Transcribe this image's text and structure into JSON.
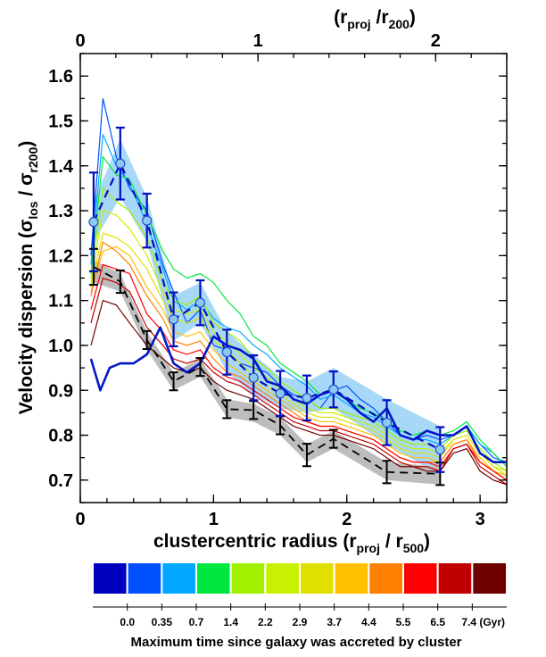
{
  "chart_data": {
    "type": "line",
    "xlabel": {
      "main": "clustercentric radius (r",
      "sub": "proj",
      "mid": " / r",
      "sub2": "500",
      "end": ")"
    },
    "ylabel": {
      "main": "Velocity dispersion (σ",
      "sub": "los",
      "mid": " / σ",
      "sub2": "r200",
      "end": ")"
    },
    "top_label": {
      "open": "(r",
      "sub": "proj",
      "mid": " /r",
      "sub2": "200",
      "end": ")"
    },
    "xlim": [
      0,
      3.2
    ],
    "ylim": [
      0.65,
      1.65
    ],
    "top_axis_scale": 0.75,
    "x_ticks": [
      "0",
      "1",
      "2",
      "3"
    ],
    "y_ticks": [
      "0.7",
      "0.8",
      "0.9",
      "1.0",
      "1.1",
      "1.2",
      "1.3",
      "1.4",
      "1.5",
      "1.6"
    ],
    "top_ticks": [
      "0",
      "1",
      "2"
    ],
    "x_minor_step": 0.2,
    "y_minor_step": 0.05,
    "colorbar": {
      "colors": [
        "#0000c0",
        "#0050ff",
        "#00a8ff",
        "#00e840",
        "#a0f000",
        "#c8f000",
        "#e0e000",
        "#ffc000",
        "#ff8000",
        "#ff0000",
        "#c00000",
        "#700000"
      ],
      "labels": [
        "0.0",
        "0.35",
        "0.7",
        "1.4",
        "2.2",
        "2.9",
        "3.7",
        "4.4",
        "5.5",
        "6.5",
        "7.4 (Gyr)"
      ],
      "title": "Maximum time since galaxy was accreted by cluster"
    },
    "shaded_bands": [
      {
        "name": "blue-band",
        "color": "#a8d8f8",
        "x": [
          0.1,
          0.3,
          0.5,
          0.7,
          0.9,
          1.1,
          1.3,
          1.5,
          1.7,
          1.9,
          2.3,
          2.7
        ],
        "lower": [
          1.23,
          1.33,
          1.23,
          1.01,
          1.05,
          0.94,
          0.89,
          0.86,
          0.85,
          0.86,
          0.78,
          0.71
        ],
        "upper": [
          1.32,
          1.46,
          1.33,
          1.11,
          1.14,
          1.03,
          0.98,
          0.93,
          0.92,
          0.95,
          0.88,
          0.82
        ]
      },
      {
        "name": "gray-band",
        "color": "#bdbdbd",
        "x": [
          0.1,
          0.3,
          0.5,
          0.7,
          0.9,
          1.1,
          1.3,
          1.5,
          1.7,
          1.9,
          2.3,
          2.7
        ],
        "lower": [
          1.14,
          1.12,
          0.99,
          0.9,
          0.93,
          0.84,
          0.83,
          0.8,
          0.74,
          0.77,
          0.7,
          0.69
        ],
        "upper": [
          1.19,
          1.16,
          1.03,
          0.94,
          0.97,
          0.88,
          0.87,
          0.84,
          0.78,
          0.81,
          0.74,
          0.73
        ]
      }
    ],
    "thin_lines": {
      "x": [
        0.08,
        0.17,
        0.27,
        0.37,
        0.5,
        0.62,
        0.7,
        0.8,
        0.9,
        1.0,
        1.1,
        1.2,
        1.3,
        1.4,
        1.5,
        1.6,
        1.7,
        1.8,
        1.9,
        2.0,
        2.1,
        2.2,
        2.3,
        2.4,
        2.5,
        2.6,
        2.7,
        2.8,
        2.9,
        3.0,
        3.1,
        3.2
      ],
      "series": [
        {
          "name": "0.35",
          "values": [
            1.2,
            1.55,
            1.42,
            1.35,
            1.3,
            1.18,
            1.12,
            1.05,
            1.08,
            1.0,
            0.99,
            0.96,
            0.95,
            0.94,
            0.91,
            0.89,
            0.88,
            0.86,
            0.9,
            0.91,
            0.88,
            0.86,
            0.83,
            0.8,
            0.79,
            0.8,
            0.79,
            0.8,
            0.82,
            0.78,
            0.75,
            0.74
          ]
        },
        {
          "name": "0.7",
          "values": [
            1.18,
            1.47,
            1.4,
            1.36,
            1.27,
            1.17,
            1.1,
            1.08,
            1.1,
            1.06,
            1.04,
            1.03,
            1.0,
            0.98,
            0.95,
            0.93,
            0.91,
            0.88,
            0.89,
            0.87,
            0.85,
            0.84,
            0.82,
            0.8,
            0.79,
            0.79,
            0.78,
            0.8,
            0.82,
            0.78,
            0.76,
            0.73
          ]
        },
        {
          "name": "1.4",
          "values": [
            1.16,
            1.42,
            1.38,
            1.37,
            1.29,
            1.21,
            1.17,
            1.15,
            1.16,
            1.14,
            1.1,
            1.07,
            1.02,
            1.0,
            0.96,
            0.94,
            0.92,
            0.89,
            0.9,
            0.88,
            0.86,
            0.85,
            0.83,
            0.81,
            0.8,
            0.81,
            0.8,
            0.81,
            0.83,
            0.79,
            0.76,
            0.73
          ]
        },
        {
          "name": "2.2",
          "values": [
            1.15,
            1.35,
            1.32,
            1.3,
            1.24,
            1.14,
            1.1,
            1.09,
            1.11,
            1.05,
            1.03,
            1.01,
            0.97,
            0.95,
            0.92,
            0.9,
            0.88,
            0.86,
            0.86,
            0.85,
            0.84,
            0.83,
            0.81,
            0.79,
            0.78,
            0.78,
            0.77,
            0.8,
            0.81,
            0.77,
            0.74,
            0.72
          ]
        },
        {
          "name": "2.9",
          "values": [
            1.14,
            1.3,
            1.29,
            1.26,
            1.2,
            1.12,
            1.08,
            1.07,
            1.08,
            1.03,
            1.01,
            0.98,
            0.95,
            0.93,
            0.9,
            0.88,
            0.86,
            0.85,
            0.85,
            0.84,
            0.83,
            0.82,
            0.8,
            0.78,
            0.77,
            0.77,
            0.76,
            0.79,
            0.8,
            0.76,
            0.73,
            0.72
          ]
        },
        {
          "name": "3.7",
          "values": [
            1.13,
            1.25,
            1.24,
            1.22,
            1.17,
            1.1,
            1.06,
            1.05,
            1.06,
            1.01,
            0.99,
            0.96,
            0.93,
            0.91,
            0.89,
            0.87,
            0.85,
            0.84,
            0.84,
            0.83,
            0.82,
            0.81,
            0.79,
            0.77,
            0.76,
            0.76,
            0.75,
            0.79,
            0.8,
            0.76,
            0.73,
            0.71
          ]
        },
        {
          "name": "4.4",
          "values": [
            1.12,
            1.21,
            1.22,
            1.2,
            1.13,
            1.08,
            1.03,
            1.02,
            1.03,
            0.99,
            0.96,
            0.94,
            0.92,
            0.9,
            0.88,
            0.86,
            0.84,
            0.83,
            0.83,
            0.82,
            0.81,
            0.8,
            0.78,
            0.76,
            0.75,
            0.75,
            0.74,
            0.78,
            0.79,
            0.75,
            0.72,
            0.71
          ]
        },
        {
          "name": "5.5",
          "values": [
            1.11,
            1.23,
            1.21,
            1.18,
            1.11,
            1.06,
            1.01,
            1.0,
            1.01,
            0.97,
            0.94,
            0.93,
            0.91,
            0.89,
            0.87,
            0.85,
            0.83,
            0.82,
            0.82,
            0.81,
            0.8,
            0.79,
            0.77,
            0.75,
            0.74,
            0.74,
            0.74,
            0.78,
            0.79,
            0.74,
            0.72,
            0.7
          ]
        },
        {
          "name": "6.5",
          "values": [
            1.08,
            1.18,
            1.17,
            1.16,
            1.07,
            1.03,
            0.99,
            0.98,
            0.99,
            0.95,
            0.93,
            0.92,
            0.9,
            0.88,
            0.86,
            0.84,
            0.83,
            0.82,
            0.82,
            0.81,
            0.8,
            0.79,
            0.77,
            0.75,
            0.74,
            0.74,
            0.73,
            0.77,
            0.78,
            0.74,
            0.72,
            0.7
          ]
        },
        {
          "name": "7.4",
          "values": [
            1.05,
            1.15,
            1.14,
            1.12,
            1.04,
            1.0,
            0.97,
            0.96,
            0.97,
            0.94,
            0.92,
            0.91,
            0.89,
            0.87,
            0.85,
            0.83,
            0.82,
            0.81,
            0.81,
            0.8,
            0.79,
            0.78,
            0.76,
            0.74,
            0.73,
            0.73,
            0.72,
            0.77,
            0.78,
            0.73,
            0.71,
            0.69
          ]
        },
        {
          "name": "> 7.4",
          "values": [
            1.0,
            1.1,
            1.09,
            1.05,
            1.0,
            0.97,
            0.95,
            0.94,
            0.95,
            0.92,
            0.9,
            0.89,
            0.88,
            0.86,
            0.84,
            0.82,
            0.81,
            0.8,
            0.8,
            0.79,
            0.78,
            0.77,
            0.75,
            0.73,
            0.73,
            0.72,
            0.72,
            0.76,
            0.77,
            0.72,
            0.7,
            0.69
          ]
        }
      ]
    },
    "bold_blue_line": {
      "x": [
        0.08,
        0.15,
        0.22,
        0.3,
        0.4,
        0.5,
        0.6,
        0.7,
        0.8,
        0.9,
        1.0,
        1.1,
        1.2,
        1.3,
        1.4,
        1.5,
        1.6,
        1.7,
        1.8,
        1.9,
        2.0,
        2.1,
        2.2,
        2.3,
        2.4,
        2.5,
        2.6,
        2.7,
        2.8,
        2.9,
        3.0,
        3.1,
        3.2
      ],
      "y": [
        0.97,
        0.9,
        0.95,
        0.96,
        0.96,
        0.98,
        1.04,
        0.96,
        0.94,
        0.96,
        1.02,
        1.0,
        0.99,
        0.97,
        0.92,
        0.91,
        0.88,
        0.87,
        0.89,
        0.9,
        0.88,
        0.85,
        0.83,
        0.86,
        0.8,
        0.79,
        0.81,
        0.8,
        0.8,
        0.82,
        0.76,
        0.74,
        0.74
      ]
    },
    "blue_points": {
      "x": [
        0.1,
        0.3,
        0.5,
        0.7,
        0.9,
        1.1,
        1.3,
        1.5,
        1.7,
        1.9,
        2.3,
        2.7
      ],
      "y": [
        1.275,
        1.405,
        1.278,
        1.058,
        1.095,
        0.985,
        0.928,
        0.893,
        0.883,
        0.902,
        0.828,
        0.768
      ],
      "err": [
        0.11,
        0.08,
        0.06,
        0.06,
        0.05,
        0.05,
        0.05,
        0.05,
        0.05,
        0.04,
        0.05,
        0.05
      ]
    },
    "black_points": {
      "x": [
        0.1,
        0.3,
        0.5,
        0.7,
        0.9,
        1.1,
        1.3,
        1.5,
        1.7,
        1.9,
        2.3,
        2.7
      ],
      "y": [
        1.175,
        1.142,
        1.012,
        0.92,
        0.952,
        0.858,
        0.856,
        0.822,
        0.756,
        0.792,
        0.718,
        0.714
      ],
      "err": [
        0.04,
        0.025,
        0.02,
        0.02,
        0.02,
        0.02,
        0.02,
        0.02,
        0.025,
        0.02,
        0.025,
        0.025
      ]
    }
  }
}
